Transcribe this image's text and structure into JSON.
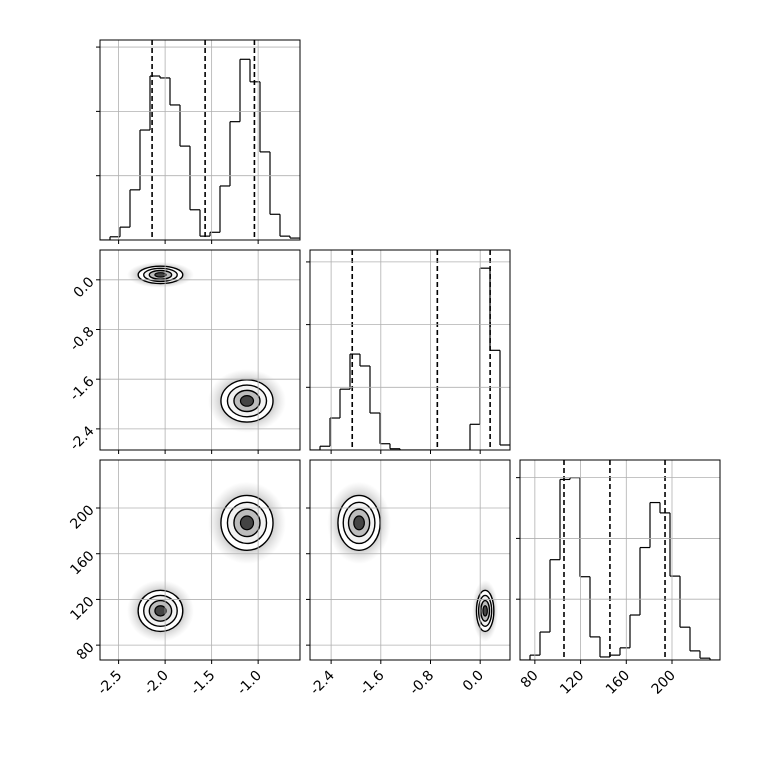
{
  "chart_data": {
    "type": "corner",
    "grid": true,
    "line_color": "#000000",
    "parameters": [
      {
        "lim": [
          -2.7,
          -0.55
        ],
        "ticks": [
          -2.5,
          {
            "value": -2,
            "label": "-2.0"
          },
          -1.5,
          {
            "value": -1,
            "label": "-1.0"
          }
        ]
      },
      {
        "lim": [
          -2.74,
          0.48
        ],
        "ticks": [
          -2.4,
          -1.6,
          -0.8,
          {
            "value": 0,
            "label": "0.0"
          }
        ]
      },
      {
        "lim": [
          67,
          242
        ],
        "ticks": [
          80,
          120,
          160,
          200
        ]
      }
    ],
    "histograms": [
      {
        "bins": [
          -2.7,
          -2.5925,
          -2.485,
          -2.3775,
          -2.27,
          -2.1625,
          -2.055,
          -1.9475,
          -1.84,
          -1.7325,
          -1.625,
          -1.5175,
          -1.41,
          -1.3025,
          -1.195,
          -1.0875,
          -0.98,
          -0.8725,
          -0.765,
          -0.6575,
          -0.55
        ],
        "counts": [
          0,
          50,
          200,
          780,
          1710,
          2550,
          2520,
          2100,
          1460,
          470,
          60,
          120,
          840,
          1840,
          2810,
          2460,
          1370,
          400,
          60,
          30
        ],
        "ylim": [
          0,
          3110
        ],
        "yticks": [
          1000,
          2000,
          3000
        ],
        "quantiles": [
          -2.14,
          -1.57,
          -1.04
        ]
      },
      {
        "bins": [
          -2.74,
          -2.579,
          -2.418,
          -2.257,
          -2.096,
          -1.935,
          -1.774,
          -1.613,
          -1.452,
          -1.291,
          -1.13,
          -0.969,
          -0.808,
          -0.647,
          -0.486,
          -0.325,
          -0.164,
          -0.003,
          0.158,
          0.319,
          0.48
        ],
        "counts": [
          0,
          60,
          510,
          970,
          1530,
          1340,
          590,
          100,
          20,
          0,
          0,
          0,
          0,
          0,
          0,
          0,
          410,
          2900,
          1590,
          80
        ],
        "ylim": [
          0,
          3190
        ],
        "yticks": [
          1000,
          2000,
          3000
        ],
        "quantiles": [
          -2.06,
          -0.69,
          0.16
        ]
      },
      {
        "bins": [
          67,
          75.75,
          84.5,
          93.25,
          102,
          110.75,
          119.5,
          128.25,
          137,
          145.75,
          154.5,
          163.25,
          172,
          180.75,
          189.5,
          198.25,
          207,
          215.75,
          224.5,
          233.25,
          242
        ],
        "counts": [
          0,
          80,
          460,
          1650,
          2970,
          3000,
          1370,
          380,
          50,
          80,
          200,
          740,
          1850,
          2590,
          2420,
          1380,
          540,
          150,
          30,
          0
        ],
        "ylim": [
          0,
          3290
        ],
        "yticks": [
          1000,
          2000,
          3000
        ],
        "quantiles": [
          105.5,
          145.7,
          193.9
        ]
      }
    ],
    "modes": [
      {
        "mean": [
          -2.05,
          0.08,
          110
        ],
        "sd": [
          0.12,
          0.07,
          9
        ]
      },
      {
        "mean": [
          -1.12,
          -1.95,
          187
        ],
        "sd": [
          0.14,
          0.17,
          12
        ]
      }
    ]
  }
}
